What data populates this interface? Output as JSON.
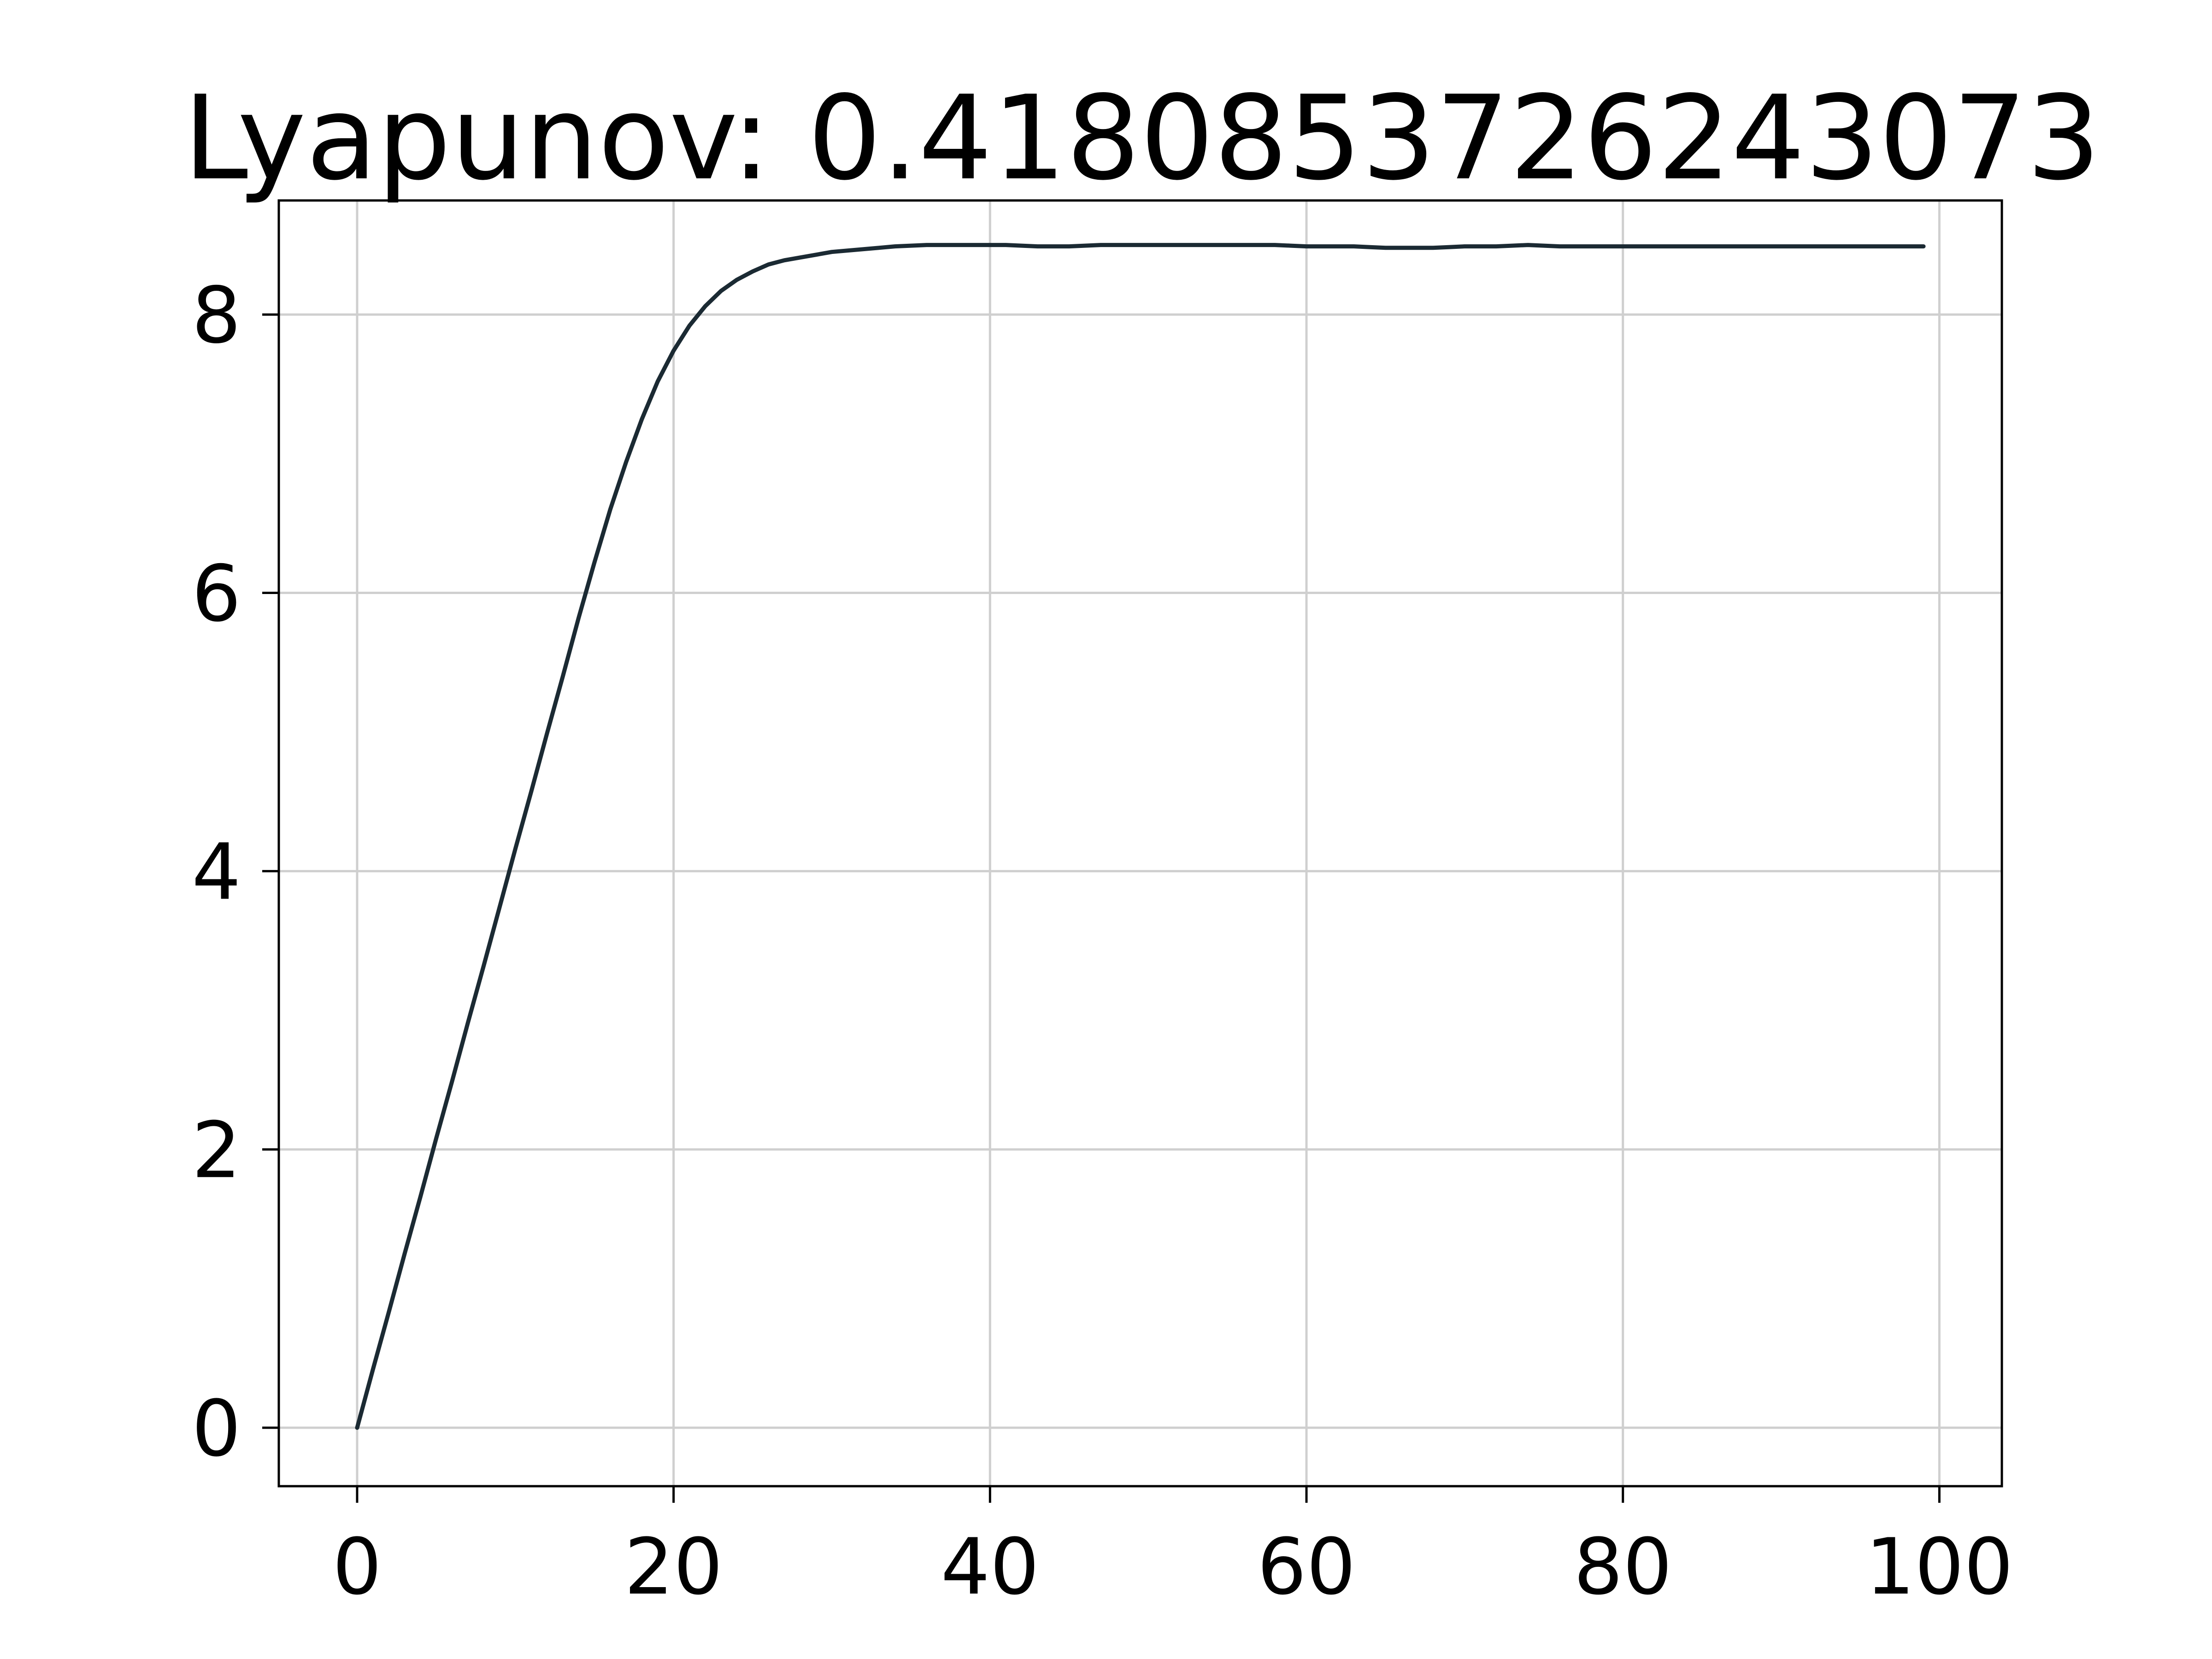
{
  "chart_data": {
    "type": "line",
    "title": "Lyapunov: 0.4180853726243073",
    "xlabel": "",
    "ylabel": "",
    "xlim": [
      -4.95,
      103.95
    ],
    "ylim": [
      -0.42,
      8.82
    ],
    "grid": true,
    "x_ticks": [
      0,
      20,
      40,
      60,
      80,
      100
    ],
    "y_ticks": [
      0,
      2,
      4,
      6,
      8
    ],
    "x_tick_labels": [
      "0",
      "20",
      "40",
      "60",
      "80",
      "100"
    ],
    "y_tick_labels": [
      "0",
      "2",
      "4",
      "6",
      "8"
    ],
    "line_color": "#1b2a33",
    "series": [
      {
        "x": [
          0,
          1,
          2,
          3,
          4,
          5,
          6,
          7,
          8,
          9,
          10,
          11,
          12,
          13,
          14,
          15,
          16,
          17,
          18,
          19,
          20,
          21,
          22,
          23,
          24,
          25,
          26,
          27,
          28,
          29,
          30,
          31,
          32,
          33,
          34,
          35,
          36,
          37,
          38,
          39,
          40,
          41,
          42,
          43,
          44,
          45,
          46,
          47,
          48,
          49,
          50,
          51,
          52,
          53,
          54,
          55,
          56,
          57,
          58,
          59,
          60,
          61,
          62,
          63,
          64,
          65,
          66,
          67,
          68,
          69,
          70,
          71,
          72,
          73,
          74,
          75,
          76,
          77,
          78,
          79,
          80,
          81,
          82,
          83,
          84,
          85,
          86,
          87,
          88,
          89,
          90,
          91,
          92,
          93,
          94,
          95,
          96,
          97,
          98,
          99
        ],
        "values": [
          0.0,
          0.42,
          0.83,
          1.25,
          1.66,
          2.08,
          2.49,
          2.91,
          3.32,
          3.74,
          4.16,
          4.57,
          4.99,
          5.4,
          5.82,
          6.22,
          6.6,
          6.94,
          7.25,
          7.52,
          7.74,
          7.92,
          8.06,
          8.17,
          8.25,
          8.31,
          8.36,
          8.39,
          8.41,
          8.43,
          8.45,
          8.46,
          8.47,
          8.48,
          8.49,
          8.495,
          8.5,
          8.5,
          8.5,
          8.5,
          8.5,
          8.5,
          8.495,
          8.49,
          8.49,
          8.49,
          8.495,
          8.5,
          8.5,
          8.5,
          8.5,
          8.5,
          8.5,
          8.5,
          8.5,
          8.5,
          8.5,
          8.5,
          8.5,
          8.495,
          8.49,
          8.49,
          8.49,
          8.49,
          8.485,
          8.48,
          8.48,
          8.48,
          8.48,
          8.485,
          8.49,
          8.49,
          8.49,
          8.495,
          8.5,
          8.495,
          8.49,
          8.49,
          8.49,
          8.49,
          8.49,
          8.49,
          8.49,
          8.49,
          8.49,
          8.49,
          8.49,
          8.49,
          8.49,
          8.49,
          8.49,
          8.49,
          8.49,
          8.49,
          8.49,
          8.49,
          8.49,
          8.49,
          8.49,
          8.49
        ]
      }
    ]
  }
}
